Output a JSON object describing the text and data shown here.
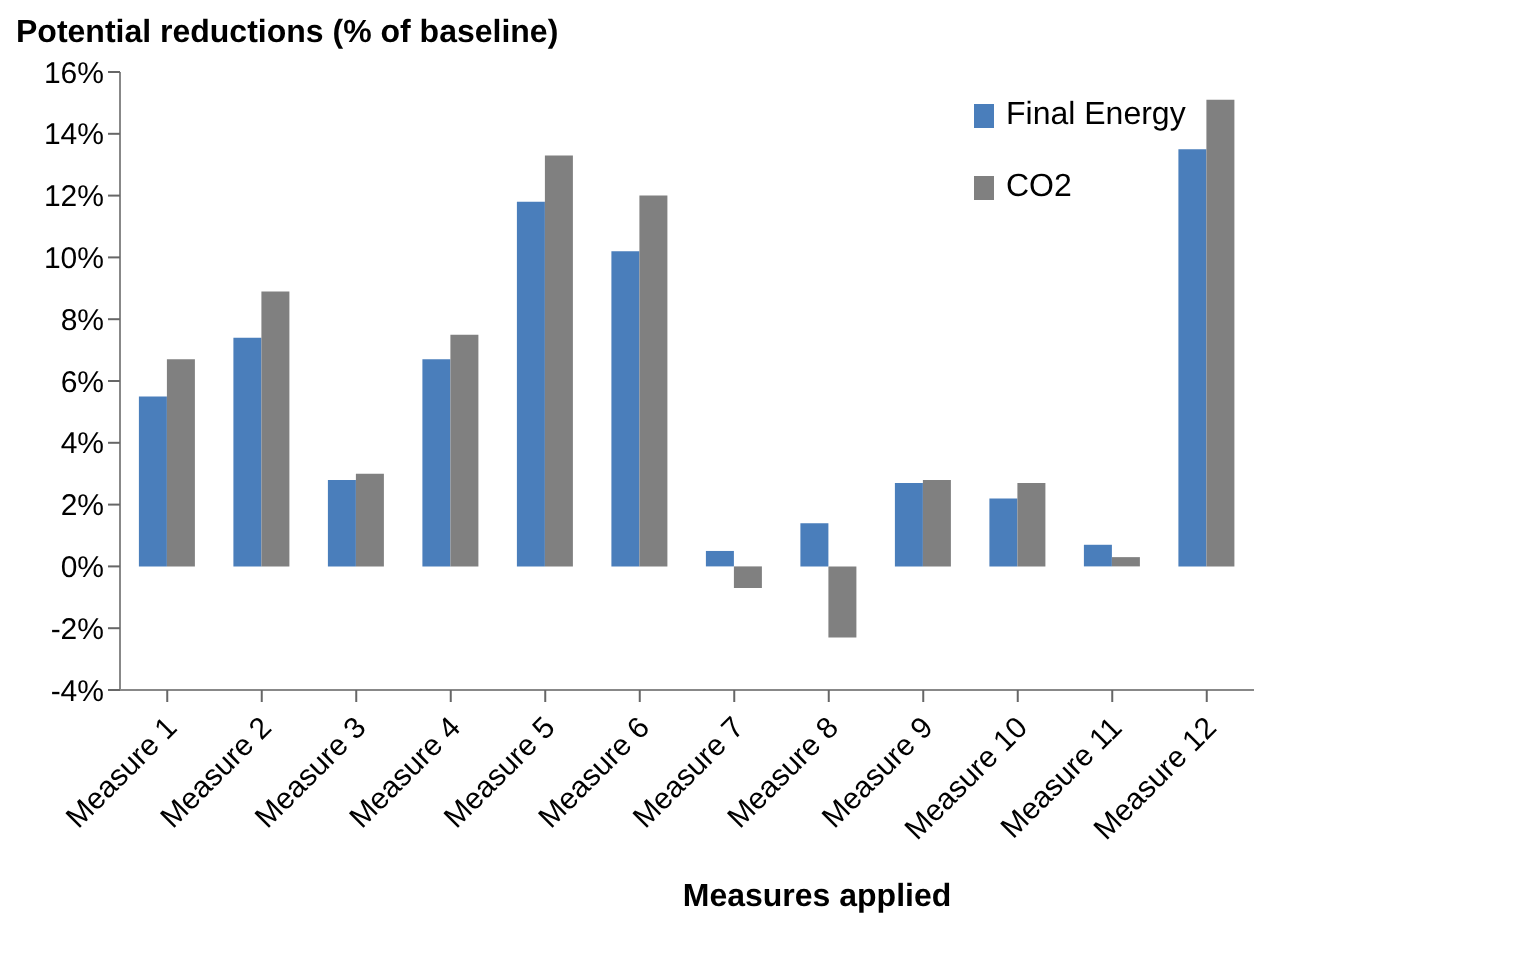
{
  "chart_data": {
    "type": "bar",
    "title": "Potential reductions (% of baseline)",
    "xlabel": "Measures applied",
    "categories": [
      "Measure 1",
      "Measure 2",
      "Measure 3",
      "Measure 4",
      "Measure 5",
      "Measure 6",
      "Measure 7",
      "Measure 8",
      "Measure 9",
      "Measure 10",
      "Measure 11",
      "Measure 12"
    ],
    "series": [
      {
        "name": "Final Energy",
        "color": "#4a7ebb",
        "values": [
          5.5,
          7.4,
          2.8,
          6.7,
          11.8,
          10.2,
          0.5,
          1.4,
          2.7,
          2.2,
          0.7,
          13.5
        ]
      },
      {
        "name": "CO2",
        "color": "#808080",
        "values": [
          6.7,
          8.9,
          3.0,
          7.5,
          13.3,
          12.0,
          -0.7,
          -2.3,
          2.8,
          2.7,
          0.3,
          15.1
        ]
      }
    ],
    "ylim": [
      -4,
      16
    ],
    "yticks": [
      {
        "value": -4,
        "label": "-4%"
      },
      {
        "value": -2,
        "label": "-2%"
      },
      {
        "value": 0,
        "label": "0%"
      },
      {
        "value": 2,
        "label": "2%"
      },
      {
        "value": 4,
        "label": "4%"
      },
      {
        "value": 6,
        "label": "6%"
      },
      {
        "value": 8,
        "label": "8%"
      },
      {
        "value": 10,
        "label": "10%"
      },
      {
        "value": 12,
        "label": "12%"
      },
      {
        "value": 14,
        "label": "14%"
      },
      {
        "value": 16,
        "label": "16%"
      }
    ],
    "grid": false,
    "legend": "top right"
  }
}
